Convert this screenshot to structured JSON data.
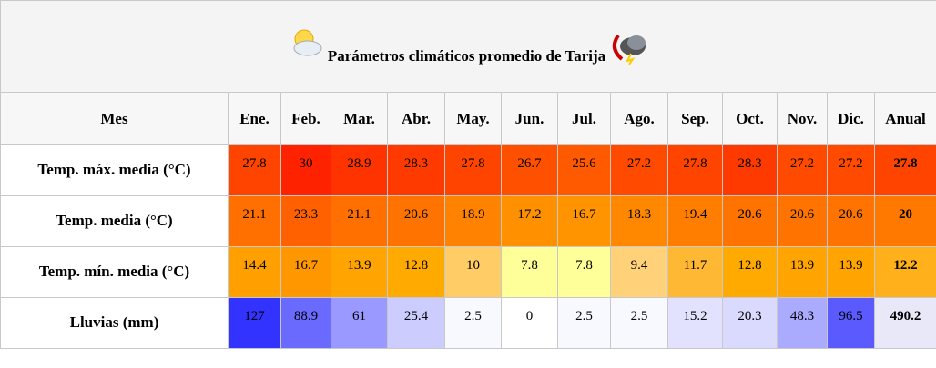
{
  "table": {
    "title": "Parámetros climáticos promedio de Tarija",
    "header": [
      "Mes",
      "Ene.",
      "Feb.",
      "Mar.",
      "Abr.",
      "May.",
      "Jun.",
      "Jul.",
      "Ago.",
      "Sep.",
      "Oct.",
      "Nov.",
      "Dic.",
      "Anual"
    ],
    "rows": [
      {
        "label": "Temp. máx. media (°C)",
        "values": [
          27.8,
          30,
          28.9,
          28.3,
          27.8,
          26.7,
          25.6,
          27.2,
          27.8,
          28.3,
          27.2,
          27.2,
          27.8
        ],
        "colors": [
          "#ff4400",
          "#ff2200",
          "#ff3300",
          "#ff3a00",
          "#ff4400",
          "#ff5000",
          "#ff5a00",
          "#ff4a00",
          "#ff4400",
          "#ff3a00",
          "#ff4a00",
          "#ff4a00",
          "#ff4400"
        ]
      },
      {
        "label": "Temp. media (°C)",
        "values": [
          21.1,
          23.3,
          21.1,
          20.6,
          18.9,
          17.2,
          16.7,
          18.3,
          19.4,
          20.6,
          20.6,
          20.6,
          20
        ],
        "colors": [
          "#ff7000",
          "#ff6000",
          "#ff7000",
          "#ff7400",
          "#ff8200",
          "#ff9000",
          "#ff9400",
          "#ff8800",
          "#ff7e00",
          "#ff7400",
          "#ff7400",
          "#ff7400",
          "#ff7800"
        ]
      },
      {
        "label": "Temp. mín. media (°C)",
        "values": [
          14.4,
          16.7,
          13.9,
          12.8,
          10,
          7.8,
          7.8,
          9.4,
          11.7,
          12.8,
          13.9,
          13.9,
          12.2
        ],
        "colors": [
          "#ffa000",
          "#ff9800",
          "#ffa400",
          "#ffaa00",
          "#ffcc66",
          "#ffff99",
          "#ffff99",
          "#ffd27a",
          "#ffb833",
          "#ffaa00",
          "#ffa400",
          "#ffa400",
          "#ffb01a"
        ]
      },
      {
        "label": "Lluvias (mm)",
        "values": [
          127,
          88.9,
          61,
          25.4,
          2.5,
          0,
          2.5,
          2.5,
          15.2,
          20.3,
          48.3,
          96.5,
          490.2
        ],
        "colors": [
          "#3333ff",
          "#6a6aff",
          "#9999ff",
          "#ccccff",
          "#f8f8ff",
          "#ffffff",
          "#f8f8ff",
          "#f8f8ff",
          "#e2e2ff",
          "#dadaff",
          "#aaaaff",
          "#5a5aff",
          "#e8e8f8"
        ]
      }
    ]
  }
}
